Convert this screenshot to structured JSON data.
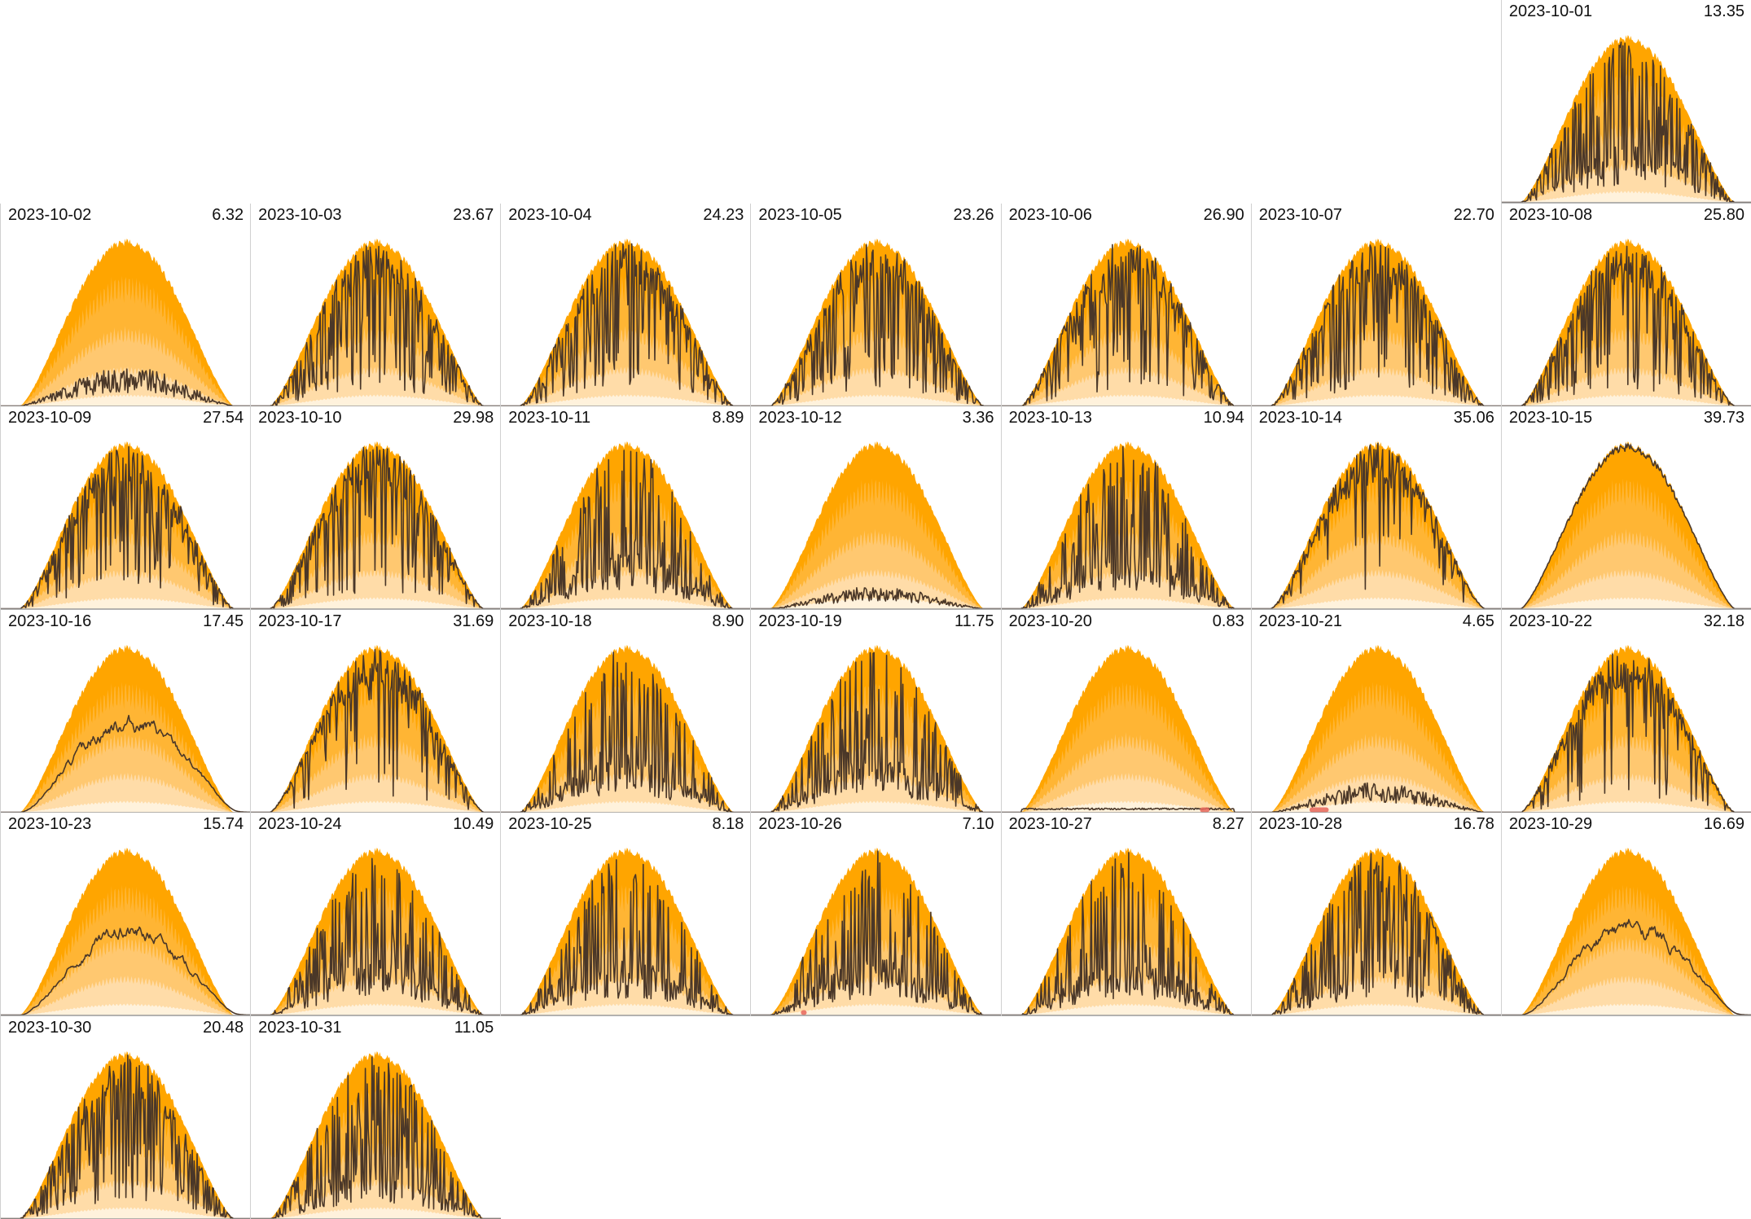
{
  "colors": {
    "band_outer": "#ffa500",
    "band_2": "#ffb534",
    "band_3": "#ffc870",
    "band_4": "#ffdca8",
    "band_inner": "#fff2dc",
    "actual_line": "#4a3728",
    "low_marker": "#e8665a",
    "cell_border": "#d0d0d0",
    "baseline": "#9a9a9a"
  },
  "chart_data": {
    "type": "area",
    "layout": "calendar-grid",
    "columns": 7,
    "start_weekday": 6,
    "x_unit": "hour of day",
    "x_range": [
      6,
      19
    ],
    "y_range": [
      0,
      1
    ],
    "days": [
      {
        "date": "2023-10-01",
        "total": "13.35",
        "fraction": 0.34,
        "mode": "spiky",
        "seed": 1
      },
      {
        "date": "2023-10-02",
        "total": "6.32",
        "fraction": 0.16,
        "mode": "low",
        "seed": 2
      },
      {
        "date": "2023-10-03",
        "total": "23.67",
        "fraction": 0.6,
        "mode": "spiky",
        "seed": 3
      },
      {
        "date": "2023-10-04",
        "total": "24.23",
        "fraction": 0.61,
        "mode": "spiky",
        "seed": 4
      },
      {
        "date": "2023-10-05",
        "total": "23.26",
        "fraction": 0.59,
        "mode": "spiky",
        "seed": 5
      },
      {
        "date": "2023-10-06",
        "total": "26.90",
        "fraction": 0.68,
        "mode": "spiky",
        "seed": 6
      },
      {
        "date": "2023-10-07",
        "total": "22.70",
        "fraction": 0.57,
        "mode": "spiky",
        "seed": 7
      },
      {
        "date": "2023-10-08",
        "total": "25.80",
        "fraction": 0.65,
        "mode": "spiky",
        "seed": 8
      },
      {
        "date": "2023-10-09",
        "total": "27.54",
        "fraction": 0.69,
        "mode": "spiky",
        "seed": 9
      },
      {
        "date": "2023-10-10",
        "total": "29.98",
        "fraction": 0.75,
        "mode": "spiky",
        "seed": 10
      },
      {
        "date": "2023-10-11",
        "total": "8.89",
        "fraction": 0.22,
        "mode": "spiky",
        "seed": 11
      },
      {
        "date": "2023-10-12",
        "total": "3.36",
        "fraction": 0.09,
        "mode": "low",
        "seed": 12
      },
      {
        "date": "2023-10-13",
        "total": "10.94",
        "fraction": 0.28,
        "mode": "spiky",
        "seed": 13
      },
      {
        "date": "2023-10-14",
        "total": "35.06",
        "fraction": 0.88,
        "mode": "spiky",
        "seed": 14
      },
      {
        "date": "2023-10-15",
        "total": "39.73",
        "fraction": 1.0,
        "mode": "clear",
        "seed": 15
      },
      {
        "date": "2023-10-16",
        "total": "17.45",
        "fraction": 0.44,
        "mode": "smooth",
        "seed": 16
      },
      {
        "date": "2023-10-17",
        "total": "31.69",
        "fraction": 0.8,
        "mode": "spiky",
        "seed": 17
      },
      {
        "date": "2023-10-18",
        "total": "8.90",
        "fraction": 0.22,
        "mode": "spiky",
        "seed": 18
      },
      {
        "date": "2023-10-19",
        "total": "11.75",
        "fraction": 0.3,
        "mode": "spiky",
        "seed": 19
      },
      {
        "date": "2023-10-20",
        "total": "0.83",
        "fraction": 0.02,
        "mode": "flat",
        "seed": 20,
        "marker": [
          16.3,
          16.8
        ]
      },
      {
        "date": "2023-10-21",
        "total": "4.65",
        "fraction": 0.12,
        "mode": "low",
        "seed": 21,
        "marker": [
          9.0,
          10.0
        ]
      },
      {
        "date": "2023-10-22",
        "total": "32.18",
        "fraction": 0.81,
        "mode": "spiky",
        "seed": 22
      },
      {
        "date": "2023-10-23",
        "total": "15.74",
        "fraction": 0.4,
        "mode": "smooth",
        "seed": 23
      },
      {
        "date": "2023-10-24",
        "total": "10.49",
        "fraction": 0.26,
        "mode": "spiky",
        "seed": 24
      },
      {
        "date": "2023-10-25",
        "total": "8.18",
        "fraction": 0.21,
        "mode": "spiky",
        "seed": 25
      },
      {
        "date": "2023-10-26",
        "total": "7.10",
        "fraction": 0.18,
        "mode": "spiky",
        "seed": 26,
        "marker": [
          8.6,
          8.9
        ]
      },
      {
        "date": "2023-10-27",
        "total": "8.27",
        "fraction": 0.21,
        "mode": "spiky",
        "seed": 27
      },
      {
        "date": "2023-10-28",
        "total": "16.78",
        "fraction": 0.42,
        "mode": "spiky",
        "seed": 28
      },
      {
        "date": "2023-10-29",
        "total": "16.69",
        "fraction": 0.42,
        "mode": "smooth",
        "seed": 29
      },
      {
        "date": "2023-10-30",
        "total": "20.48",
        "fraction": 0.52,
        "mode": "spiky",
        "seed": 30
      },
      {
        "date": "2023-10-31",
        "total": "11.05",
        "fraction": 0.28,
        "mode": "spiky",
        "seed": 31
      }
    ]
  }
}
